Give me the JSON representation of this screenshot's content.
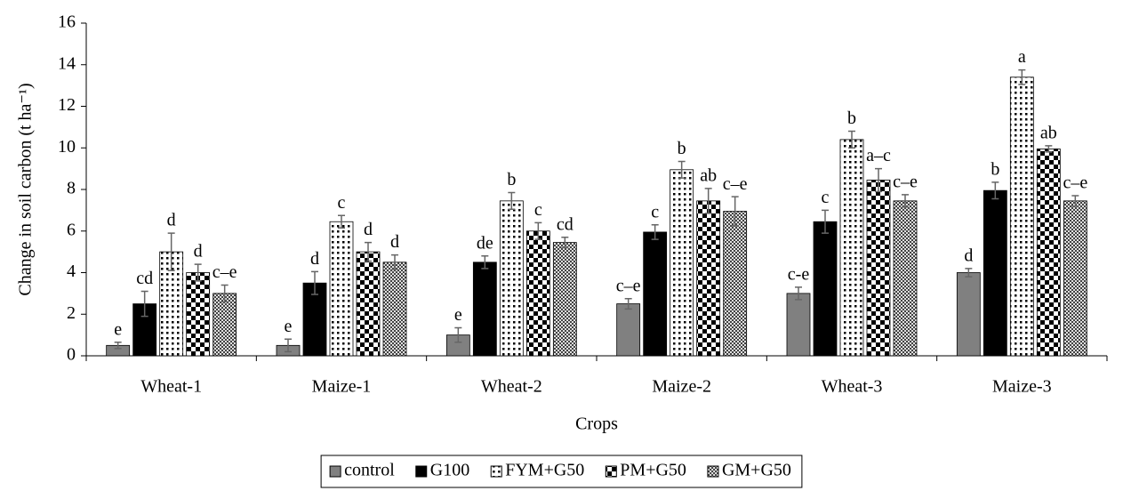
{
  "chart_data": {
    "type": "bar",
    "ylabel": "Change in soil carbon (t ha⁻¹)",
    "xlabel": "Crops",
    "categories": [
      "Wheat-1",
      "Maize-1",
      "Wheat-2",
      "Maize-2",
      "Wheat-3",
      "Maize-3"
    ],
    "ylim": [
      0,
      16
    ],
    "yticks": [
      0,
      2,
      4,
      6,
      8,
      10,
      12,
      14,
      16
    ],
    "legend": "bottom",
    "series": [
      {
        "name": "control",
        "color": "#808080",
        "pattern": "solid",
        "values": [
          0.5,
          0.5,
          1.0,
          2.5,
          3.0,
          4.0
        ],
        "errors": [
          0.15,
          0.3,
          0.35,
          0.25,
          0.3,
          0.2
        ],
        "letters": [
          "e",
          "e",
          "e",
          "c–e",
          "c-e",
          "d"
        ]
      },
      {
        "name": "G100",
        "color": "#000000",
        "pattern": "solid",
        "values": [
          2.5,
          3.5,
          4.5,
          5.95,
          6.45,
          7.95
        ],
        "errors": [
          0.6,
          0.55,
          0.3,
          0.35,
          0.55,
          0.4
        ],
        "letters": [
          "cd",
          "d",
          "de",
          "c",
          "c",
          "b"
        ]
      },
      {
        "name": "FYM+G50",
        "color": "#000000",
        "pattern": "dots",
        "values": [
          5.0,
          6.45,
          7.45,
          8.95,
          10.4,
          13.4
        ],
        "errors": [
          0.9,
          0.3,
          0.4,
          0.4,
          0.4,
          0.35
        ],
        "letters": [
          "d",
          "c",
          "b",
          "b",
          "b",
          "a"
        ]
      },
      {
        "name": "PM+G50",
        "color": "#000000",
        "pattern": "checker",
        "values": [
          4.0,
          5.0,
          6.0,
          7.45,
          8.45,
          9.95
        ],
        "errors": [
          0.4,
          0.45,
          0.4,
          0.6,
          0.55,
          0.15
        ],
        "letters": [
          "d",
          "d",
          "c",
          "ab",
          "a–c",
          "ab"
        ]
      },
      {
        "name": "GM+G50",
        "color": "#000000",
        "pattern": "hatch",
        "values": [
          3.0,
          4.5,
          5.45,
          6.95,
          7.45,
          7.45
        ],
        "errors": [
          0.4,
          0.35,
          0.25,
          0.7,
          0.3,
          0.25
        ],
        "letters": [
          "c–e",
          "d",
          "cd",
          "c–e",
          "c–e",
          "c–e"
        ]
      }
    ]
  }
}
